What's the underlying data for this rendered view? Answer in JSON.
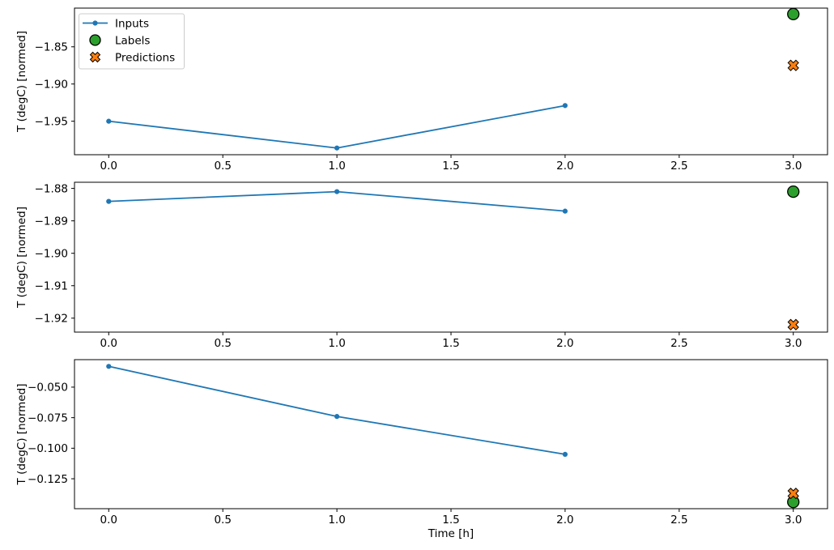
{
  "figure": {
    "background": "#ffffff",
    "xlabel": "Time [h]",
    "ylabel": "T (degC) [normed]",
    "legend": {
      "position": "upper left",
      "items": [
        {
          "label": "Inputs",
          "marker": "line-dot",
          "color": "#1f77b4",
          "edge_color": "#1f77b4"
        },
        {
          "label": "Labels",
          "marker": "circle",
          "color": "#2ca02c",
          "edge_color": "#000000"
        },
        {
          "label": "Predictions",
          "marker": "x-filled",
          "color": "#ff7f0e",
          "edge_color": "#000000"
        }
      ]
    },
    "colors": {
      "inputs": "#1f77b4",
      "labels": "#2ca02c",
      "predictions": "#ff7f0e",
      "spine": "#000000",
      "legend_border": "#cccccc"
    }
  },
  "chart_data": [
    {
      "type": "line",
      "ylabel": "T (degC) [normed]",
      "xlabel": "",
      "xlim": [
        -0.15,
        3.15
      ],
      "ylim": [
        -1.995,
        -1.798
      ],
      "xticks": [
        0.0,
        0.5,
        1.0,
        1.5,
        2.0,
        2.5,
        3.0
      ],
      "xtick_decimals": 1,
      "yticks": [
        -1.85,
        -1.9,
        -1.95
      ],
      "ytick_decimals": 2,
      "grid": false,
      "show_legend": true,
      "series": [
        {
          "name": "Inputs",
          "type": "line",
          "x": [
            0,
            1,
            2
          ],
          "y": [
            -1.95,
            -1.986,
            -1.929
          ],
          "color": "#1f77b4",
          "marker": "dot"
        },
        {
          "name": "Labels",
          "type": "scatter",
          "x": [
            3
          ],
          "y": [
            -1.806
          ],
          "color": "#2ca02c",
          "marker": "circle"
        },
        {
          "name": "Predictions",
          "type": "scatter",
          "x": [
            3
          ],
          "y": [
            -1.875
          ],
          "color": "#ff7f0e",
          "marker": "x-filled"
        }
      ]
    },
    {
      "type": "line",
      "ylabel": "T (degC) [normed]",
      "xlabel": "",
      "xlim": [
        -0.15,
        3.15
      ],
      "ylim": [
        -1.9243,
        -1.8781
      ],
      "xticks": [
        0.0,
        0.5,
        1.0,
        1.5,
        2.0,
        2.5,
        3.0
      ],
      "xtick_decimals": 1,
      "yticks": [
        -1.88,
        -1.89,
        -1.9,
        -1.91,
        -1.92
      ],
      "ytick_decimals": 2,
      "grid": false,
      "show_legend": false,
      "series": [
        {
          "name": "Inputs",
          "type": "line",
          "x": [
            0,
            1,
            2
          ],
          "y": [
            -1.884,
            -1.881,
            -1.887
          ],
          "color": "#1f77b4",
          "marker": "dot"
        },
        {
          "name": "Labels",
          "type": "scatter",
          "x": [
            3
          ],
          "y": [
            -1.881
          ],
          "color": "#2ca02c",
          "marker": "circle"
        },
        {
          "name": "Predictions",
          "type": "scatter",
          "x": [
            3
          ],
          "y": [
            -1.922
          ],
          "color": "#ff7f0e",
          "marker": "x-filled"
        }
      ]
    },
    {
      "type": "line",
      "ylabel": "T (degC) [normed]",
      "xlabel": "Time [h]",
      "xlim": [
        -0.15,
        3.15
      ],
      "ylim": [
        -0.1495,
        -0.0275
      ],
      "xticks": [
        0.0,
        0.5,
        1.0,
        1.5,
        2.0,
        2.5,
        3.0
      ],
      "xtick_decimals": 1,
      "yticks": [
        -0.05,
        -0.075,
        -0.1,
        -0.125
      ],
      "ytick_decimals": 3,
      "grid": false,
      "show_legend": false,
      "series": [
        {
          "name": "Inputs",
          "type": "line",
          "x": [
            0,
            1,
            2
          ],
          "y": [
            -0.033,
            -0.074,
            -0.105
          ],
          "color": "#1f77b4",
          "marker": "dot"
        },
        {
          "name": "Labels",
          "type": "scatter",
          "x": [
            3
          ],
          "y": [
            -0.144
          ],
          "color": "#2ca02c",
          "marker": "circle"
        },
        {
          "name": "Predictions",
          "type": "scatter",
          "x": [
            3
          ],
          "y": [
            -0.137
          ],
          "color": "#ff7f0e",
          "marker": "x-filled"
        }
      ]
    }
  ]
}
